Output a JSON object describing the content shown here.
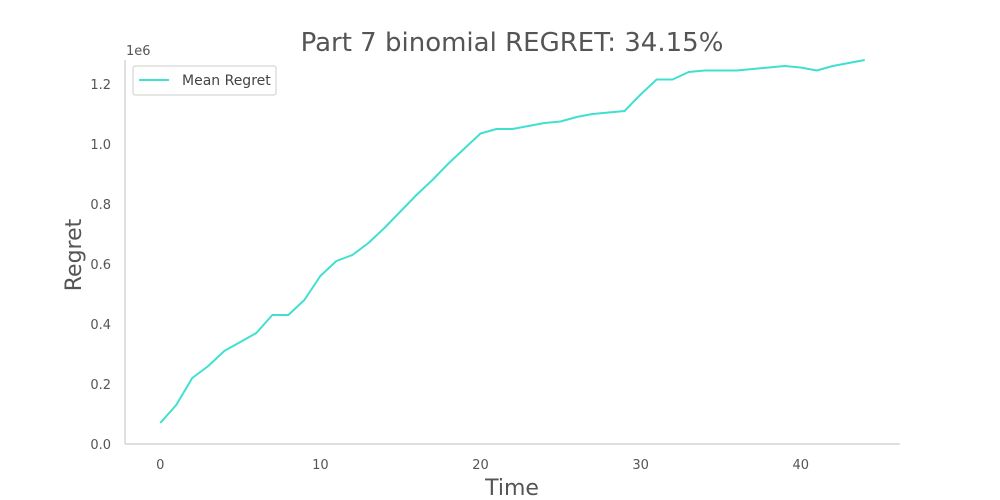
{
  "chart_data": {
    "type": "line",
    "title": "Part 7 binomial REGRET: 34.15%",
    "xlabel": "Time",
    "ylabel": "Regret",
    "y_offset_label": "1e6",
    "xlim": [
      -2.2,
      46.2
    ],
    "ylim": [
      0,
      1.28
    ],
    "x_ticks": [
      0,
      10,
      20,
      30,
      40
    ],
    "x_tick_labels": [
      "0",
      "10",
      "20",
      "30",
      "40"
    ],
    "y_ticks": [
      0.0,
      0.2,
      0.4,
      0.6,
      0.8,
      1.0,
      1.2
    ],
    "y_tick_labels": [
      "0.0",
      "0.2",
      "0.4",
      "0.6",
      "0.8",
      "1.0",
      "1.2"
    ],
    "grid": false,
    "legend_position": "top-left",
    "series": [
      {
        "name": "Mean Regret",
        "color": "#40e0d0",
        "x": [
          0,
          1,
          2,
          3,
          4,
          5,
          6,
          7,
          8,
          9,
          10,
          11,
          12,
          13,
          14,
          15,
          16,
          17,
          18,
          19,
          20,
          21,
          22,
          23,
          24,
          25,
          26,
          27,
          28,
          29,
          30,
          31,
          32,
          33,
          34,
          35,
          36,
          37,
          38,
          39,
          40,
          41,
          42,
          43,
          44
        ],
        "values": [
          0.07,
          0.13,
          0.22,
          0.26,
          0.31,
          0.34,
          0.37,
          0.43,
          0.43,
          0.48,
          0.56,
          0.61,
          0.63,
          0.67,
          0.72,
          0.775,
          0.83,
          0.88,
          0.935,
          0.985,
          1.035,
          1.05,
          1.05,
          1.06,
          1.07,
          1.075,
          1.09,
          1.1,
          1.105,
          1.11,
          1.165,
          1.215,
          1.215,
          1.24,
          1.245,
          1.245,
          1.245,
          1.25,
          1.255,
          1.26,
          1.255,
          1.245,
          1.26,
          1.27,
          1.28
        ]
      }
    ]
  }
}
